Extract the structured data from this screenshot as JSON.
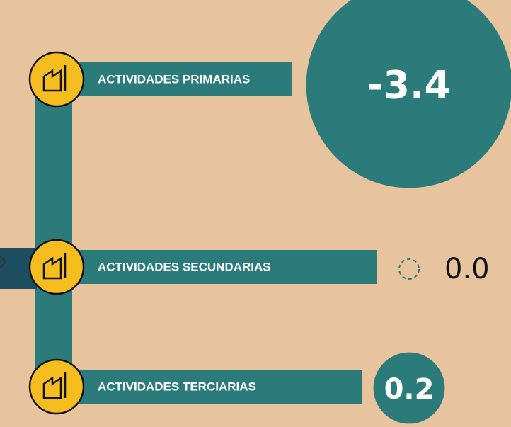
{
  "chart_data": {
    "type": "bubble",
    "categories": [
      "ACTIVIDADES PRIMARIAS",
      "ACTIVIDADES SECUNDARIAS",
      "ACTIVIDADES TERCIARIAS"
    ],
    "values": [
      -3.4,
      0.0,
      0.2
    ],
    "value_labels": [
      "-3.4",
      "0.0",
      "0.2"
    ],
    "color": "#2a7b7a"
  }
}
